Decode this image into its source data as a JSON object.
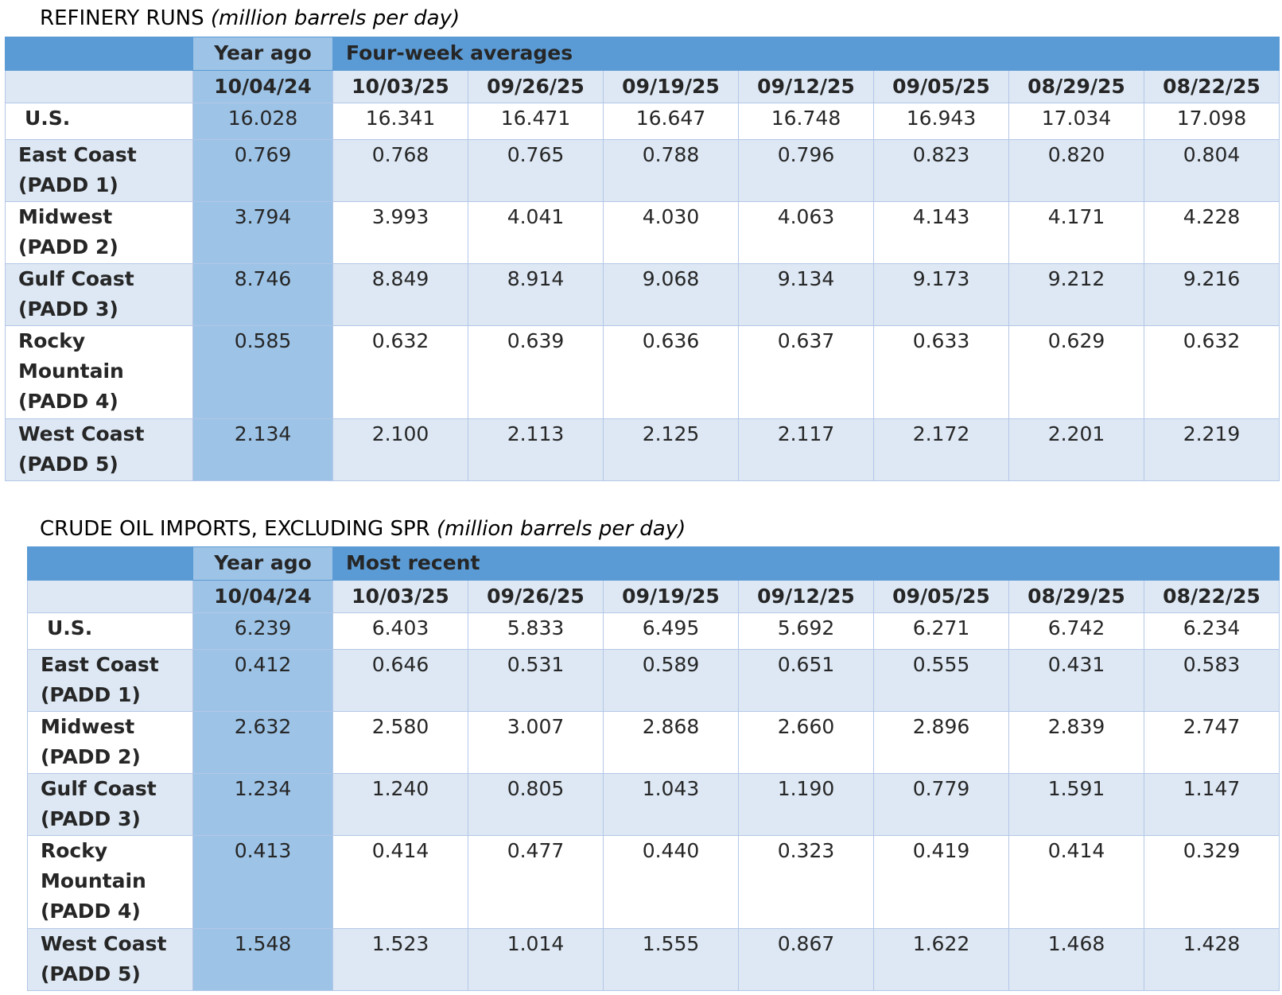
{
  "tables": [
    {
      "title": "REFINERY RUNS",
      "unit": "(million barrels per day)",
      "group_headers": [
        "Year ago",
        "Four-week averages"
      ],
      "dates": [
        "10/04/24",
        "10/03/25",
        "09/26/25",
        "09/19/25",
        "09/12/25",
        "09/05/25",
        "08/29/25",
        "08/22/25"
      ],
      "rows": [
        {
          "label": [
            "U.S."
          ],
          "values": [
            "16.028",
            "16.341",
            "16.471",
            "16.647",
            "16.748",
            "16.943",
            "17.034",
            "17.098"
          ]
        },
        {
          "label": [
            "East Coast",
            "(PADD 1)"
          ],
          "values": [
            "0.769",
            "0.768",
            "0.765",
            "0.788",
            "0.796",
            "0.823",
            "0.820",
            "0.804"
          ]
        },
        {
          "label": [
            "Midwest",
            "(PADD 2)"
          ],
          "values": [
            "3.794",
            "3.993",
            "4.041",
            "4.030",
            "4.063",
            "4.143",
            "4.171",
            "4.228"
          ]
        },
        {
          "label": [
            "Gulf Coast",
            "(PADD 3)"
          ],
          "values": [
            "8.746",
            "8.849",
            "8.914",
            "9.068",
            "9.134",
            "9.173",
            "9.212",
            "9.216"
          ]
        },
        {
          "label": [
            "Rocky",
            "Mountain",
            "(PADD 4)"
          ],
          "values": [
            "0.585",
            "0.632",
            "0.639",
            "0.636",
            "0.637",
            "0.633",
            "0.629",
            "0.632"
          ]
        },
        {
          "label": [
            "West Coast",
            "(PADD 5)"
          ],
          "values": [
            "2.134",
            "2.100",
            "2.113",
            "2.125",
            "2.117",
            "2.172",
            "2.201",
            "2.219"
          ]
        }
      ]
    },
    {
      "title": "CRUDE OIL IMPORTS, EXCLUDING SPR",
      "unit": "(million barrels per day)",
      "group_headers": [
        "Year ago",
        "Most recent"
      ],
      "dates": [
        "10/04/24",
        "10/03/25",
        "09/26/25",
        "09/19/25",
        "09/12/25",
        "09/05/25",
        "08/29/25",
        "08/22/25"
      ],
      "rows": [
        {
          "label": [
            "U.S."
          ],
          "values": [
            "6.239",
            "6.403",
            "5.833",
            "6.495",
            "5.692",
            "6.271",
            "6.742",
            "6.234"
          ]
        },
        {
          "label": [
            "East Coast",
            "(PADD 1)"
          ],
          "values": [
            "0.412",
            "0.646",
            "0.531",
            "0.589",
            "0.651",
            "0.555",
            "0.431",
            "0.583"
          ]
        },
        {
          "label": [
            "Midwest",
            "(PADD 2)"
          ],
          "values": [
            "2.632",
            "2.580",
            "3.007",
            "2.868",
            "2.660",
            "2.896",
            "2.839",
            "2.747"
          ]
        },
        {
          "label": [
            "Gulf Coast",
            "(PADD 3)"
          ],
          "values": [
            "1.234",
            "1.240",
            "0.805",
            "1.043",
            "1.190",
            "0.779",
            "1.591",
            "1.147"
          ]
        },
        {
          "label": [
            "Rocky",
            "Mountain",
            "(PADD 4)"
          ],
          "values": [
            "0.413",
            "0.414",
            "0.477",
            "0.440",
            "0.323",
            "0.419",
            "0.414",
            "0.329"
          ]
        },
        {
          "label": [
            "West Coast",
            "(PADD 5)"
          ],
          "values": [
            "1.548",
            "1.523",
            "1.014",
            "1.555",
            "0.867",
            "1.622",
            "1.468",
            "1.428"
          ]
        }
      ]
    }
  ]
}
